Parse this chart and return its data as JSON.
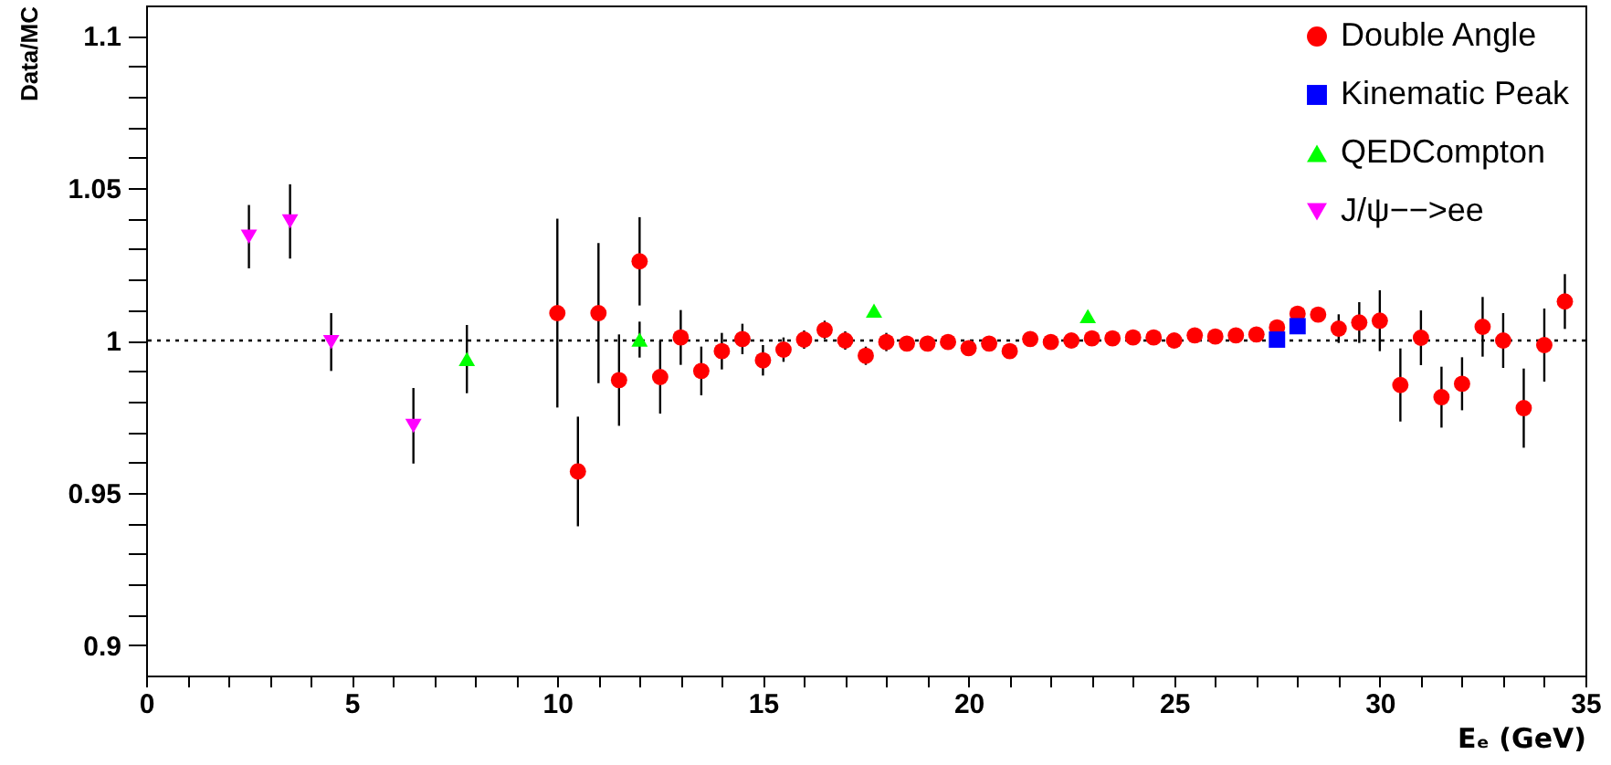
{
  "chart_data": {
    "type": "scatter",
    "xlabel": "Eₑ (GeV)",
    "ylabel": "Data/MC",
    "xlim": [
      0,
      35
    ],
    "ylim": [
      0.89,
      1.11
    ],
    "xticks": [
      0,
      {
        "value": 1,
        "label": null
      },
      {
        "value": 2,
        "label": null
      },
      {
        "value": 3,
        "label": null
      },
      {
        "value": 4,
        "label": null
      },
      5,
      {
        "value": 6,
        "label": null
      },
      {
        "value": 7,
        "label": null
      },
      {
        "value": 8,
        "label": null
      },
      {
        "value": 9,
        "label": null
      },
      10,
      {
        "value": 11,
        "label": null
      },
      {
        "value": 12,
        "label": null
      },
      {
        "value": 13,
        "label": null
      },
      {
        "value": 14,
        "label": null
      },
      15,
      {
        "value": 16,
        "label": null
      },
      {
        "value": 17,
        "label": null
      },
      {
        "value": 18,
        "label": null
      },
      {
        "value": 19,
        "label": null
      },
      20,
      {
        "value": 21,
        "label": null
      },
      {
        "value": 22,
        "label": null
      },
      {
        "value": 23,
        "label": null
      },
      {
        "value": 24,
        "label": null
      },
      25,
      {
        "value": 26,
        "label": null
      },
      {
        "value": 27,
        "label": null
      },
      {
        "value": 28,
        "label": null
      },
      {
        "value": 29,
        "label": null
      },
      30,
      {
        "value": 31,
        "label": null
      },
      {
        "value": 32,
        "label": null
      },
      {
        "value": 33,
        "label": null
      },
      {
        "value": 34,
        "label": null
      },
      35
    ],
    "yticks": [
      0.9,
      {
        "value": 0.91,
        "label": null
      },
      {
        "value": 0.92,
        "label": null
      },
      {
        "value": 0.93,
        "label": null
      },
      {
        "value": 0.94,
        "label": null
      },
      0.95,
      {
        "value": 0.96,
        "label": null
      },
      {
        "value": 0.97,
        "label": null
      },
      {
        "value": 0.98,
        "label": null
      },
      {
        "value": 0.99,
        "label": null
      },
      1,
      {
        "value": 1.01,
        "label": null
      },
      {
        "value": 1.02,
        "label": null
      },
      {
        "value": 1.03,
        "label": null
      },
      {
        "value": 1.04,
        "label": null
      },
      1.05,
      {
        "value": 1.06,
        "label": null
      },
      {
        "value": 1.07,
        "label": null
      },
      {
        "value": 1.08,
        "label": null
      },
      {
        "value": 1.09,
        "label": null
      },
      1.1
    ],
    "grid": false,
    "legend": "top right",
    "ref_lines": [
      {
        "axis": "y",
        "value": 1,
        "line_style": "dotted",
        "color": "#000000"
      }
    ],
    "series": [
      {
        "name": "Double Angle",
        "color": "#ff0000",
        "marker": "circle",
        "x": [
          10,
          10.5,
          11,
          11.5,
          12,
          12.5,
          13,
          13.5,
          14,
          14.5,
          15,
          15.5,
          16,
          16.5,
          17,
          17.5,
          18,
          18.5,
          19,
          19.5,
          20,
          20.5,
          21,
          21.5,
          22,
          22.5,
          23,
          23.5,
          24,
          24.5,
          25,
          25.5,
          26,
          26.5,
          27,
          27.5,
          28,
          28.5,
          29,
          29.5,
          30,
          30.5,
          31,
          31.5,
          32,
          32.5,
          33,
          33.5,
          34,
          34.5
        ],
        "values": [
          1.009,
          0.957,
          1.009,
          0.987,
          1.026,
          0.988,
          1.001,
          0.99,
          0.9965,
          1.0005,
          0.9935,
          0.997,
          1.0003,
          1.0035,
          1.0,
          0.995,
          0.9995,
          0.999,
          0.999,
          0.9995,
          0.9975,
          0.999,
          0.9965,
          1.0005,
          0.9995,
          1.0,
          1.0007,
          1.0007,
          1.001,
          1.001,
          1.0,
          1.0017,
          1.0013,
          1.0017,
          1.002,
          1.0043,
          1.0088,
          1.0085,
          1.0039,
          1.0059,
          1.0065,
          0.9854,
          1.0009,
          0.9814,
          0.9858,
          1.0045,
          1.0,
          0.9778,
          0.9985,
          1.0128
        ],
        "errors": [
          0.031,
          0.018,
          0.023,
          0.015,
          0.0145,
          0.012,
          0.009,
          0.008,
          0.006,
          0.005,
          0.005,
          0.004,
          0.003,
          0.003,
          0.003,
          0.003,
          0.003,
          null,
          null,
          null,
          null,
          null,
          null,
          null,
          null,
          null,
          null,
          null,
          null,
          null,
          null,
          null,
          null,
          null,
          null,
          null,
          null,
          null,
          0.0047,
          0.0067,
          0.01,
          0.012,
          0.009,
          0.01,
          0.0087,
          0.0098,
          0.009,
          0.013,
          0.012,
          0.009
        ]
      },
      {
        "name": "Kinematic Peak",
        "color": "#0000ff",
        "marker": "square",
        "x": [
          27.5,
          28
        ],
        "values": [
          1.0003,
          1.0047
        ]
      },
      {
        "name": "QEDCompton",
        "color": "#00ff00",
        "marker": "triangle",
        "x": [
          7.8,
          12,
          17.7,
          22.9
        ],
        "values": [
          0.9939,
          1.0003,
          1.0098,
          1.008
        ],
        "errors": [
          0.0112,
          0.0059,
          null,
          null
        ]
      },
      {
        "name": "J/ψ−−>ee",
        "color": "#ff00ff",
        "marker": "triangle-down",
        "x": [
          2.5,
          3.5,
          4.5,
          6.5
        ],
        "values": [
          1.0341,
          1.0391,
          0.9995,
          0.972
        ],
        "errors": [
          0.0104,
          0.0122,
          0.0095,
          0.0124
        ]
      }
    ]
  }
}
